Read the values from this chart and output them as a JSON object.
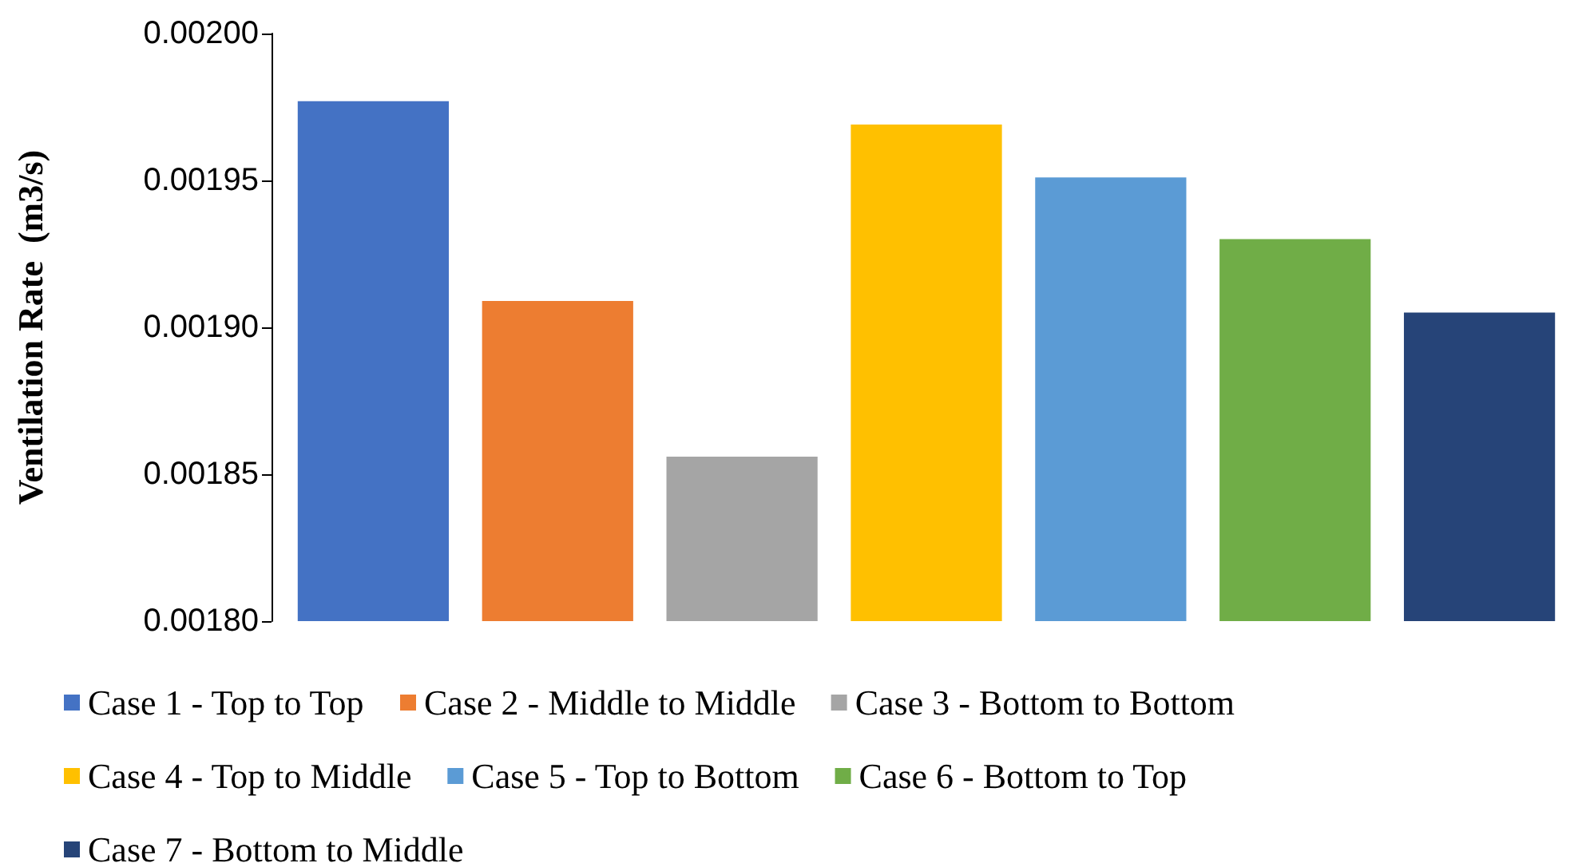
{
  "chart_data": {
    "type": "bar",
    "ylabel": "Ventilation Rate  (m3/s)",
    "categories": [
      null
    ],
    "series": [
      {
        "name": "Case 1 - Top to Top",
        "color": "#4472c4",
        "values": [
          0.001977
        ]
      },
      {
        "name": "Case 2 - Middle to Middle",
        "color": "#ed7d31",
        "values": [
          0.001909
        ]
      },
      {
        "name": "Case 3 - Bottom to Bottom",
        "color": "#a5a5a5",
        "values": [
          0.001856
        ]
      },
      {
        "name": "Case 4 - Top to Middle",
        "color": "#ffc000",
        "values": [
          0.001969
        ]
      },
      {
        "name": "Case 5 - Top to Bottom",
        "color": "#5b9bd5",
        "values": [
          0.001951
        ]
      },
      {
        "name": "Case 6 - Bottom to Top",
        "color": "#70ad47",
        "values": [
          0.00193
        ]
      },
      {
        "name": "Case 7 - Bottom to Middle",
        "color": "#264478",
        "values": [
          0.001905
        ]
      }
    ],
    "ylim": [
      0.0018,
      0.002
    ],
    "yticks": [
      {
        "value": 0.0018,
        "label": "0.00180"
      },
      0.00185,
      {
        "value": 0.0019,
        "label": "0.00190"
      },
      0.00195,
      {
        "value": 0.002,
        "label": "0.00200"
      }
    ],
    "grid": false,
    "legend": "bottom"
  }
}
